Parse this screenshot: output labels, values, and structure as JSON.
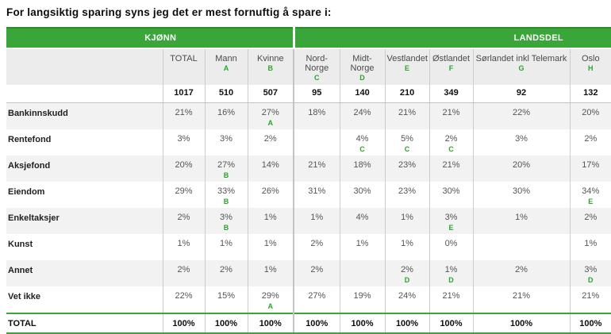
{
  "title": "For langsiktig sparing syns jeg det er mest fornuftig å spare i:",
  "colors": {
    "band_green": "#3aa63a",
    "band_green_dark": "#2c8c2c",
    "sig_letter_green": "#2ba52b",
    "header_bg": "#ececec",
    "stripe_bg": "#f2f2f2",
    "separator": "#cccccc"
  },
  "table": {
    "groups": [
      {
        "label": "KJØNN"
      },
      {
        "label": "LANDSDEL"
      }
    ],
    "columns": [
      {
        "label": "TOTAL",
        "letter": ""
      },
      {
        "label": "Mann",
        "letter": "A"
      },
      {
        "label": "Kvinne",
        "letter": "B"
      },
      {
        "label": "Nord-Norge",
        "letter": "C"
      },
      {
        "label": "Midt-Norge",
        "letter": "D"
      },
      {
        "label": "Vestlandet",
        "letter": "E"
      },
      {
        "label": "Østlandet",
        "letter": "F"
      },
      {
        "label": "Sørlandet inkl Telemark",
        "letter": "G"
      },
      {
        "label": "Oslo",
        "letter": "H"
      }
    ],
    "counts": [
      "1017",
      "510",
      "507",
      "95",
      "140",
      "210",
      "349",
      "92",
      "132"
    ],
    "rows": [
      {
        "label": "Bankinnskudd",
        "cells": [
          {
            "v": "21%",
            "sig": ""
          },
          {
            "v": "16%",
            "sig": ""
          },
          {
            "v": "27%",
            "sig": "A"
          },
          {
            "v": "18%",
            "sig": ""
          },
          {
            "v": "24%",
            "sig": ""
          },
          {
            "v": "21%",
            "sig": ""
          },
          {
            "v": "21%",
            "sig": ""
          },
          {
            "v": "22%",
            "sig": ""
          },
          {
            "v": "20%",
            "sig": ""
          }
        ]
      },
      {
        "label": "Rentefond",
        "cells": [
          {
            "v": "3%",
            "sig": ""
          },
          {
            "v": "3%",
            "sig": ""
          },
          {
            "v": "2%",
            "sig": ""
          },
          {
            "v": "",
            "sig": ""
          },
          {
            "v": "4%",
            "sig": "C"
          },
          {
            "v": "5%",
            "sig": "C"
          },
          {
            "v": "2%",
            "sig": "C"
          },
          {
            "v": "3%",
            "sig": ""
          },
          {
            "v": "2%",
            "sig": ""
          }
        ]
      },
      {
        "label": "Aksjefond",
        "cells": [
          {
            "v": "20%",
            "sig": ""
          },
          {
            "v": "27%",
            "sig": "B"
          },
          {
            "v": "14%",
            "sig": ""
          },
          {
            "v": "21%",
            "sig": ""
          },
          {
            "v": "18%",
            "sig": ""
          },
          {
            "v": "23%",
            "sig": ""
          },
          {
            "v": "21%",
            "sig": ""
          },
          {
            "v": "20%",
            "sig": ""
          },
          {
            "v": "17%",
            "sig": ""
          }
        ]
      },
      {
        "label": "Eiendom",
        "cells": [
          {
            "v": "29%",
            "sig": ""
          },
          {
            "v": "33%",
            "sig": "B"
          },
          {
            "v": "26%",
            "sig": ""
          },
          {
            "v": "31%",
            "sig": ""
          },
          {
            "v": "30%",
            "sig": ""
          },
          {
            "v": "23%",
            "sig": ""
          },
          {
            "v": "30%",
            "sig": ""
          },
          {
            "v": "30%",
            "sig": ""
          },
          {
            "v": "34%",
            "sig": "E"
          }
        ]
      },
      {
        "label": "Enkeltaksjer",
        "cells": [
          {
            "v": "2%",
            "sig": ""
          },
          {
            "v": "3%",
            "sig": "B"
          },
          {
            "v": "1%",
            "sig": ""
          },
          {
            "v": "1%",
            "sig": ""
          },
          {
            "v": "4%",
            "sig": ""
          },
          {
            "v": "1%",
            "sig": ""
          },
          {
            "v": "3%",
            "sig": "E"
          },
          {
            "v": "1%",
            "sig": ""
          },
          {
            "v": "2%",
            "sig": ""
          }
        ]
      },
      {
        "label": "Kunst",
        "cells": [
          {
            "v": "1%",
            "sig": ""
          },
          {
            "v": "1%",
            "sig": ""
          },
          {
            "v": "1%",
            "sig": ""
          },
          {
            "v": "2%",
            "sig": ""
          },
          {
            "v": "1%",
            "sig": ""
          },
          {
            "v": "1%",
            "sig": ""
          },
          {
            "v": "0%",
            "sig": ""
          },
          {
            "v": "",
            "sig": ""
          },
          {
            "v": "1%",
            "sig": ""
          }
        ]
      },
      {
        "label": "Annet",
        "cells": [
          {
            "v": "2%",
            "sig": ""
          },
          {
            "v": "2%",
            "sig": ""
          },
          {
            "v": "1%",
            "sig": ""
          },
          {
            "v": "2%",
            "sig": ""
          },
          {
            "v": "",
            "sig": ""
          },
          {
            "v": "2%",
            "sig": "D"
          },
          {
            "v": "1%",
            "sig": "D"
          },
          {
            "v": "2%",
            "sig": ""
          },
          {
            "v": "3%",
            "sig": "D"
          }
        ]
      },
      {
        "label": "Vet ikke",
        "cells": [
          {
            "v": "22%",
            "sig": ""
          },
          {
            "v": "15%",
            "sig": ""
          },
          {
            "v": "29%",
            "sig": "A"
          },
          {
            "v": "27%",
            "sig": ""
          },
          {
            "v": "19%",
            "sig": ""
          },
          {
            "v": "24%",
            "sig": ""
          },
          {
            "v": "21%",
            "sig": ""
          },
          {
            "v": "21%",
            "sig": ""
          },
          {
            "v": "21%",
            "sig": ""
          }
        ]
      }
    ],
    "total_row": {
      "label": "TOTAL",
      "cells": [
        "100%",
        "100%",
        "100%",
        "100%",
        "100%",
        "100%",
        "100%",
        "100%",
        "100%"
      ]
    }
  }
}
